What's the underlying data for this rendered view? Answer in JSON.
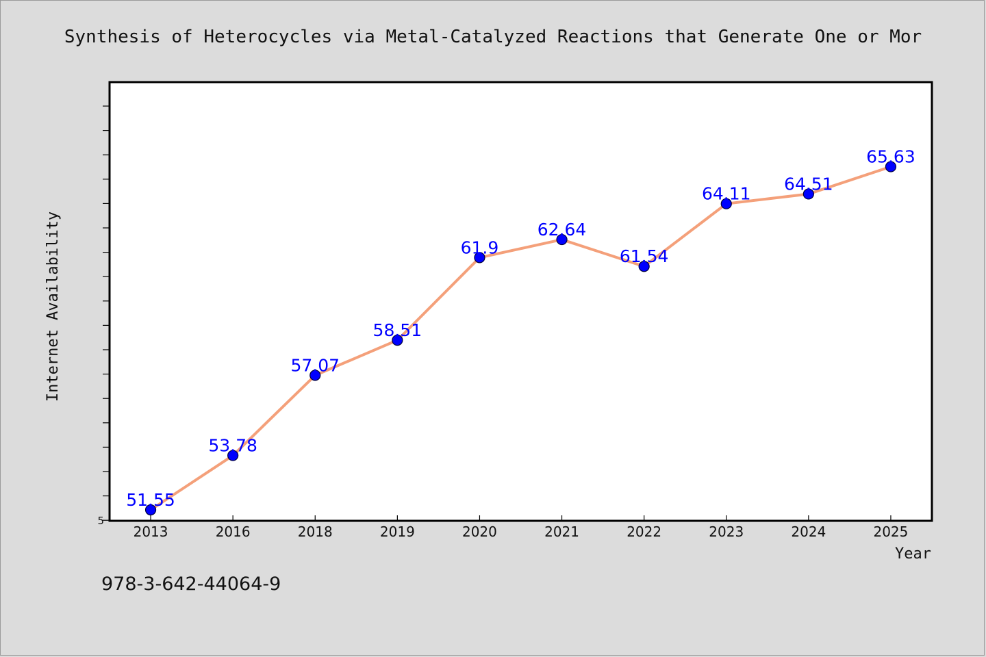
{
  "chart_data": {
    "type": "line",
    "title": "Synthesis of Heterocycles via Metal-Catalyzed Reactions that Generate One or Mor",
    "xlabel": "Year",
    "ylabel": "Internet Availability",
    "categories": [
      "2013",
      "2016",
      "2018",
      "2019",
      "2020",
      "2021",
      "2022",
      "2023",
      "2024",
      "2025"
    ],
    "series": [
      {
        "values": [
          51.55,
          53.78,
          57.07,
          58.51,
          61.9,
          62.64,
          61.54,
          64.11,
          64.51,
          65.63
        ]
      }
    ],
    "data_labels": [
      "51.55",
      "53.78",
      "57.07",
      "58.51",
      "61.9",
      "62.64",
      "61.54",
      "64.11",
      "64.51",
      "65.63"
    ],
    "y_tick_label": "5",
    "ylim": [
      51.1,
      69.1
    ],
    "grid": false,
    "legend": "none",
    "colors": {
      "line": "#f4a07a",
      "marker": "#0000ff",
      "labels": "#0000ff",
      "plot_background": "#ffffff",
      "page_background": "#dcdcdc"
    }
  },
  "footer_note": "978-3-642-44064-9"
}
